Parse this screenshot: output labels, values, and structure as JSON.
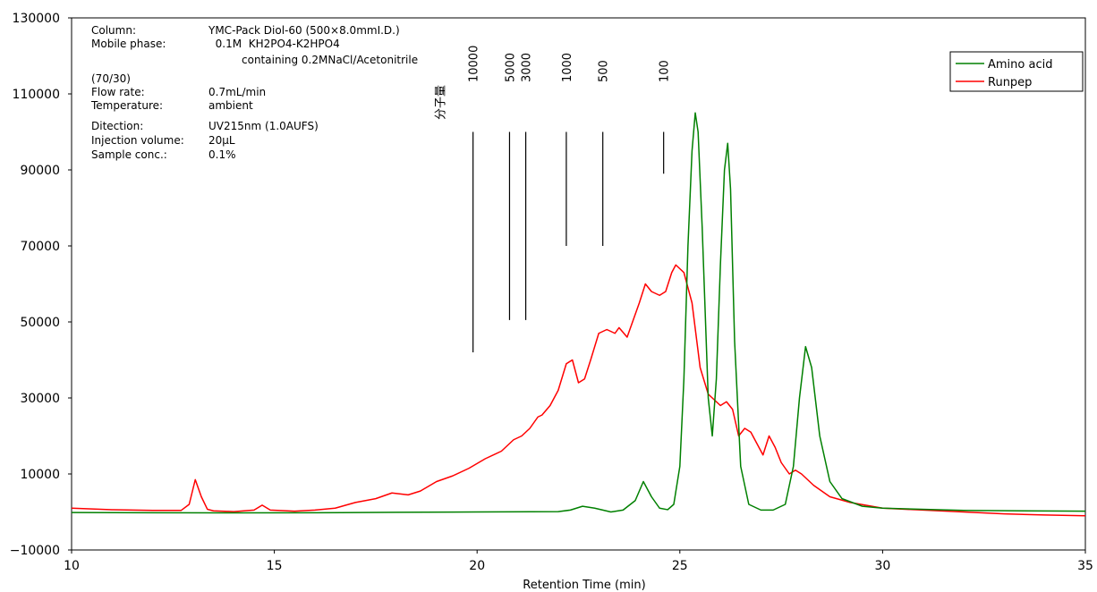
{
  "chart_data": {
    "type": "line",
    "xlabel": "Retention Time (min)",
    "ylabel": "",
    "xlim": [
      10,
      35
    ],
    "ylim": [
      -10000,
      130000
    ],
    "xticks": [
      10,
      15,
      20,
      25,
      30,
      35
    ],
    "yticks": [
      -10000,
      10000,
      30000,
      50000,
      70000,
      90000,
      110000,
      130000
    ],
    "ytick_labels": [
      "−10000",
      "10000",
      "30000",
      "50000",
      "70000",
      "90000",
      "110000",
      "130000"
    ],
    "grid": false,
    "legend": {
      "position": "top-right"
    },
    "series": [
      {
        "name": "Amino acid",
        "color": "#008000",
        "x": [
          10,
          12,
          14,
          16,
          18,
          20,
          22,
          22.3,
          22.6,
          22.9,
          23.3,
          23.6,
          23.9,
          24.1,
          24.3,
          24.5,
          24.7,
          24.85,
          25.0,
          25.1,
          25.2,
          25.3,
          25.38,
          25.45,
          25.55,
          25.7,
          25.8,
          25.9,
          26.0,
          26.1,
          26.18,
          26.25,
          26.35,
          26.5,
          26.7,
          27.0,
          27.3,
          27.6,
          27.8,
          27.95,
          28.1,
          28.25,
          28.45,
          28.7,
          29.0,
          29.5,
          30,
          32,
          35
        ],
        "y": [
          -150,
          -200,
          -250,
          -200,
          -100,
          0,
          100,
          500,
          1500,
          1000,
          0,
          500,
          3000,
          8000,
          4000,
          1000,
          600,
          2000,
          12000,
          35000,
          70000,
          95000,
          105000,
          100000,
          75000,
          30000,
          20000,
          35000,
          65000,
          90000,
          97000,
          85000,
          45000,
          12000,
          2000,
          500,
          500,
          2000,
          12000,
          30000,
          43500,
          38000,
          20000,
          8000,
          3500,
          1500,
          1000,
          400,
          200
        ]
      },
      {
        "name": "Runpep",
        "color": "#ff0000",
        "x": [
          10,
          11,
          12,
          12.7,
          12.9,
          13.05,
          13.2,
          13.35,
          13.5,
          14.0,
          14.5,
          14.7,
          14.9,
          15.5,
          16.0,
          16.5,
          17.0,
          17.5,
          17.9,
          18.3,
          18.6,
          19.0,
          19.4,
          19.8,
          20.2,
          20.6,
          20.9,
          21.1,
          21.3,
          21.5,
          21.6,
          21.8,
          22.0,
          22.2,
          22.35,
          22.5,
          22.65,
          22.8,
          23.0,
          23.2,
          23.4,
          23.5,
          23.7,
          24.0,
          24.15,
          24.3,
          24.5,
          24.65,
          24.8,
          24.9,
          25.1,
          25.3,
          25.5,
          25.7,
          25.9,
          26.0,
          26.15,
          26.3,
          26.45,
          26.6,
          26.75,
          26.9,
          27.05,
          27.2,
          27.35,
          27.5,
          27.7,
          27.85,
          28.0,
          28.3,
          28.7,
          29.2,
          30,
          31,
          32,
          33,
          34,
          35
        ],
        "y": [
          1000,
          600,
          400,
          400,
          2000,
          8500,
          4000,
          700,
          300,
          100,
          500,
          1800,
          500,
          200,
          500,
          1000,
          2500,
          3500,
          5000,
          4500,
          5500,
          8000,
          9500,
          11500,
          14000,
          16000,
          19000,
          20000,
          22000,
          25000,
          25500,
          28000,
          32000,
          39000,
          40000,
          34000,
          35000,
          40000,
          47000,
          48000,
          47000,
          48500,
          46000,
          55000,
          60000,
          58000,
          57000,
          58000,
          63000,
          65000,
          63000,
          55000,
          38000,
          31000,
          29000,
          28000,
          29000,
          27000,
          20000,
          22000,
          21000,
          18000,
          15000,
          20000,
          17000,
          13000,
          10000,
          11000,
          10000,
          7000,
          4000,
          2500,
          1000,
          500,
          0,
          -500,
          -800,
          -1000
        ]
      }
    ],
    "annotations": {
      "mw_header": "分子量",
      "mw_markers": [
        {
          "label": "10000",
          "x": 19.9,
          "y_top": 100000,
          "y_bottom": 42000
        },
        {
          "label": "5000",
          "x": 20.8,
          "y_top": 100000,
          "y_bottom": 50500
        },
        {
          "label": "3000",
          "x": 21.2,
          "y_top": 100000,
          "y_bottom": 50500
        },
        {
          "label": "1000",
          "x": 22.2,
          "y_top": 100000,
          "y_bottom": 70000
        },
        {
          "label": "500",
          "x": 23.1,
          "y_top": 100000,
          "y_bottom": 70000
        },
        {
          "label": "100",
          "x": 24.6,
          "y_top": 100000,
          "y_bottom": 89000
        }
      ]
    }
  },
  "conditions": [
    {
      "label": "Column:",
      "value": "YMC-Pack Diol-60 (500×8.0mmI.D.)"
    },
    {
      "label": "Mobile phase:",
      "value": "  0.1M  KH2PO4-K2HPO4"
    },
    {
      "label": "",
      "value": "containing 0.2MNaCl/Acetonitrile"
    },
    {
      "label": "(70/30)",
      "value": ""
    },
    {
      "label": "Flow rate:",
      "value": "0.7mL/min"
    },
    {
      "label": "Temperature:",
      "value": "ambient"
    },
    {
      "label": "Ditection:",
      "value": "UV215nm (1.0AUFS)"
    },
    {
      "label": "Injection volume:",
      "value": "20μL"
    },
    {
      "label": "Sample conc.:",
      "value": "0.1%"
    }
  ]
}
